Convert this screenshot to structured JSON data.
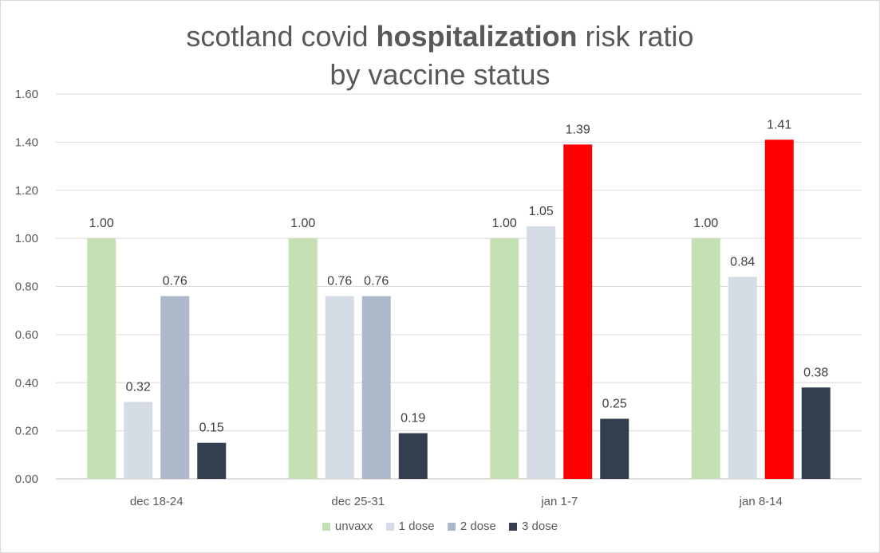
{
  "chart_data": {
    "type": "bar",
    "title_parts": [
      "scotland covid ",
      "hospitalization",
      " risk ratio"
    ],
    "title_line2": "by vaccine status",
    "categories": [
      "dec 18-24",
      "dec 25-31",
      "jan 1-7",
      "jan 8-14"
    ],
    "series": [
      {
        "name": "unvaxx",
        "color": "#c5e0b4",
        "values": [
          1.0,
          1.0,
          1.0,
          1.0
        ],
        "labels": [
          "1.00",
          "1.00",
          "1.00",
          "1.00"
        ]
      },
      {
        "name": "1 dose",
        "color": "#d6dce5",
        "values": [
          0.32,
          0.76,
          1.05,
          0.84
        ],
        "labels": [
          "0.32",
          "0.76",
          "1.05",
          "0.84"
        ]
      },
      {
        "name": "2 dose",
        "color": "#adb9ca",
        "values": [
          0.76,
          0.76,
          1.39,
          1.41
        ],
        "labels": [
          "0.76",
          "0.76",
          "1.39",
          "1.41"
        ],
        "point_colors": [
          "#adb9ca",
          "#adb9ca",
          "#ff0000",
          "#ff0000"
        ]
      },
      {
        "name": "3 dose",
        "color": "#333f50",
        "values": [
          0.15,
          0.19,
          0.25,
          0.38
        ],
        "labels": [
          "0.15",
          "0.19",
          "0.25",
          "0.38"
        ]
      }
    ],
    "yticks": [
      "0.00",
      "0.20",
      "0.40",
      "0.60",
      "0.80",
      "1.00",
      "1.20",
      "1.40",
      "1.60"
    ],
    "ylim": [
      0,
      1.6
    ],
    "grid": true,
    "legend": "bottom"
  }
}
